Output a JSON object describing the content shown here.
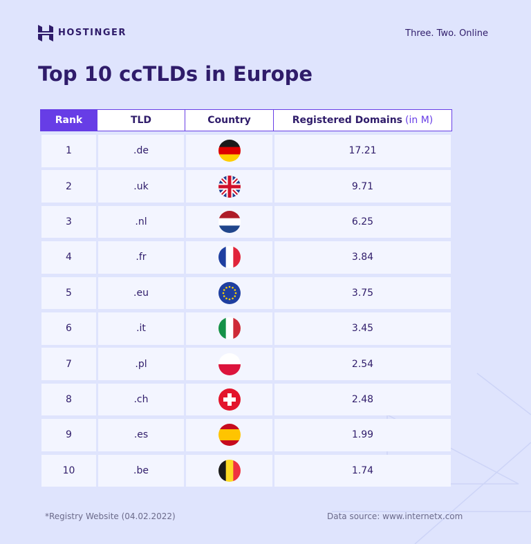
{
  "header": {
    "brand": "HOSTINGER",
    "tagline": "Three. Two. Online",
    "title": "Top 10 ccTLDs in Europe"
  },
  "table": {
    "columns": [
      "Rank",
      "TLD",
      "Country",
      "Registered Domains"
    ],
    "unit": "(in M)",
    "rows": [
      [
        "1",
        ".de",
        "17.21"
      ],
      [
        "2",
        ".uk",
        "9.71"
      ],
      [
        "3",
        ".nl",
        "6.25"
      ],
      [
        "4",
        ".fr",
        "3.84"
      ],
      [
        "5",
        ".eu",
        "3.75"
      ],
      [
        "6",
        ".it",
        "3.45"
      ],
      [
        "7",
        ".pl",
        "2.54"
      ],
      [
        "8",
        ".ch",
        "2.48"
      ],
      [
        "9",
        ".es",
        "1.99"
      ],
      [
        "10",
        ".be",
        "1.74"
      ]
    ]
  },
  "footer": {
    "note": "*Registry Website (04.02.2022)",
    "source": "Data source: www.internetx.com"
  }
}
